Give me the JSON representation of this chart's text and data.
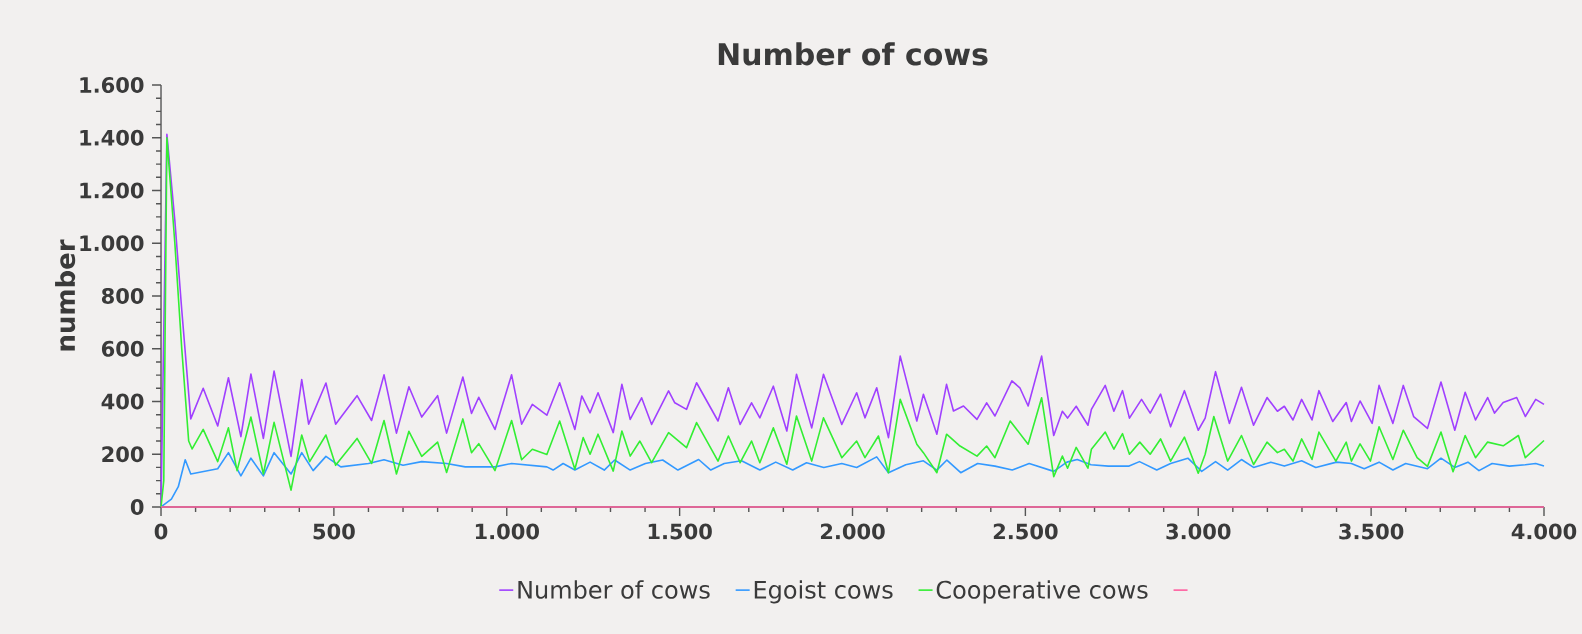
{
  "chart_data": {
    "type": "line",
    "title": "Number of cows",
    "ylabel": "number",
    "xlim": [
      0,
      4000
    ],
    "ylim": [
      0,
      1600
    ],
    "xticks": [
      0,
      500,
      {
        "value": 1000,
        "label": "1.000"
      },
      {
        "value": 1500,
        "label": "1.500"
      },
      {
        "value": 2000,
        "label": "2.000"
      },
      {
        "value": 2500,
        "label": "2.500"
      },
      {
        "value": 3000,
        "label": "3.000"
      },
      {
        "value": 3500,
        "label": "3.500"
      },
      {
        "value": 4000,
        "label": "4.000"
      }
    ],
    "yticks": [
      0,
      200,
      400,
      600,
      800,
      {
        "value": 1000,
        "label": "1.000"
      },
      {
        "value": 1200,
        "label": "1.200"
      },
      {
        "value": 1400,
        "label": "1.400"
      },
      {
        "value": 1600,
        "label": "1.600"
      }
    ],
    "legend": "bottom",
    "series": [
      {
        "name": "Number of cows",
        "color": "#a040ff",
        "x": [
          0,
          17,
          40,
          60,
          86,
          122,
          164,
          195,
          231,
          260,
          296,
          327,
          376,
          407,
          427,
          477,
          505,
          567,
          609,
          645,
          681,
          717,
          754,
          800,
          826,
          873,
          898,
          919,
          966,
          1014,
          1043,
          1074,
          1116,
          1153,
          1197,
          1217,
          1241,
          1264,
          1308,
          1333,
          1357,
          1390,
          1419,
          1468,
          1486,
          1520,
          1549,
          1611,
          1641,
          1675,
          1708,
          1732,
          1771,
          1810,
          1838,
          1882,
          1916,
          1969,
          2012,
          2036,
          2070,
          2104,
          2138,
          2186,
          2205,
          2244,
          2272,
          2292,
          2321,
          2360,
          2388,
          2412,
          2461,
          2484,
          2508,
          2547,
          2582,
          2607,
          2622,
          2647,
          2681,
          2691,
          2731,
          2756,
          2781,
          2801,
          2836,
          2861,
          2891,
          2920,
          2960,
          3000,
          3020,
          3050,
          3090,
          3125,
          3160,
          3199,
          3229,
          3249,
          3274,
          3299,
          3329,
          3349,
          3389,
          3428,
          3443,
          3468,
          3503,
          3523,
          3563,
          3593,
          3623,
          3663,
          3702,
          3742,
          3772,
          3802,
          3837,
          3857,
          3882,
          3921,
          3946,
          3976,
          4000
        ],
        "values": [
          0,
          1413,
          1086,
          747,
          334,
          450,
          307,
          490,
          267,
          504,
          260,
          515,
          192,
          483,
          314,
          470,
          314,
          422,
          328,
          501,
          280,
          456,
          341,
          422,
          280,
          493,
          355,
          416,
          294,
          501,
          314,
          389,
          348,
          471,
          294,
          421,
          357,
          433,
          282,
          465,
          332,
          414,
          313,
          440,
          395,
          370,
          471,
          326,
          452,
          313,
          395,
          338,
          458,
          288,
          503,
          300,
          503,
          313,
          433,
          338,
          452,
          263,
          572,
          326,
          427,
          276,
          465,
          364,
          383,
          332,
          395,
          345,
          478,
          452,
          383,
          572,
          271,
          363,
          337,
          382,
          310,
          370,
          461,
          363,
          441,
          337,
          408,
          356,
          428,
          304,
          441,
          291,
          337,
          513,
          317,
          454,
          310,
          415,
          363,
          382,
          330,
          408,
          330,
          441,
          324,
          396,
          324,
          402,
          317,
          461,
          317,
          461,
          343,
          298,
          474,
          291,
          435,
          330,
          415,
          356,
          396,
          415,
          343,
          408,
          389
        ]
      },
      {
        "name": "Egoist cows",
        "color": "#3399ff",
        "x": [
          0,
          30,
          50,
          70,
          86,
          164,
          195,
          231,
          260,
          296,
          327,
          376,
          407,
          440,
          477,
          520,
          600,
          645,
          700,
          754,
          826,
          880,
          966,
          1014,
          1116,
          1134,
          1163,
          1197,
          1241,
          1282,
          1312,
          1357,
          1401,
          1451,
          1495,
          1555,
          1590,
          1629,
          1679,
          1732,
          1778,
          1827,
          1867,
          1917,
          1969,
          2012,
          2070,
          2104,
          2154,
          2205,
          2244,
          2273,
          2313,
          2362,
          2412,
          2462,
          2511,
          2582,
          2620,
          2650,
          2690,
          2740,
          2800,
          2830,
          2880,
          2920,
          2970,
          3010,
          3050,
          3085,
          3125,
          3160,
          3210,
          3249,
          3299,
          3340,
          3400,
          3443,
          3480,
          3523,
          3563,
          3600,
          3663,
          3702,
          3742,
          3780,
          3812,
          3850,
          3900,
          3946,
          3976,
          4000
        ],
        "values": [
          0,
          30,
          77,
          179,
          125,
          145,
          206,
          118,
          185,
          118,
          206,
          125,
          206,
          138,
          192,
          152,
          165,
          179,
          158,
          172,
          165,
          152,
          152,
          165,
          152,
          140,
          165,
          140,
          170,
          140,
          178,
          140,
          165,
          178,
          140,
          180,
          140,
          165,
          175,
          140,
          170,
          140,
          168,
          150,
          165,
          150,
          190,
          130,
          160,
          175,
          140,
          178,
          130,
          165,
          155,
          140,
          165,
          135,
          170,
          180,
          160,
          155,
          155,
          172,
          140,
          165,
          185,
          135,
          172,
          140,
          180,
          150,
          170,
          155,
          175,
          150,
          170,
          165,
          145,
          170,
          140,
          165,
          145,
          185,
          150,
          170,
          138,
          165,
          155,
          160,
          165,
          155
        ]
      },
      {
        "name": "Cooperative cows",
        "color": "#33ee33",
        "x": [
          0,
          8,
          17,
          40,
          60,
          80,
          90,
          122,
          164,
          195,
          220,
          260,
          296,
          327,
          376,
          407,
          430,
          477,
          505,
          567,
          609,
          645,
          681,
          717,
          754,
          800,
          826,
          873,
          898,
          919,
          966,
          1014,
          1043,
          1074,
          1116,
          1153,
          1197,
          1221,
          1241,
          1264,
          1308,
          1333,
          1357,
          1385,
          1419,
          1468,
          1520,
          1549,
          1611,
          1641,
          1675,
          1708,
          1732,
          1771,
          1810,
          1838,
          1882,
          1916,
          1969,
          2012,
          2036,
          2075,
          2104,
          2138,
          2186,
          2205,
          2244,
          2272,
          2311,
          2360,
          2388,
          2412,
          2456,
          2508,
          2547,
          2582,
          2607,
          2622,
          2647,
          2681,
          2691,
          2731,
          2756,
          2781,
          2801,
          2831,
          2861,
          2891,
          2920,
          2960,
          3000,
          3020,
          3045,
          3085,
          3125,
          3160,
          3199,
          3229,
          3249,
          3274,
          3299,
          3329,
          3349,
          3398,
          3428,
          3443,
          3468,
          3498,
          3523,
          3563,
          3593,
          3633,
          3663,
          3702,
          3737,
          3772,
          3802,
          3837,
          3882,
          3926,
          3946,
          4000
        ],
        "values": [
          0,
          100,
          1400,
          1000,
          600,
          250,
          220,
          294,
          172,
          300,
          138,
          341,
          125,
          321,
          64,
          273,
          172,
          273,
          158,
          260,
          165,
          328,
          125,
          287,
          192,
          246,
          131,
          334,
          206,
          240,
          138,
          328,
          179,
          219,
          199,
          326,
          143,
          263,
          200,
          276,
          136,
          288,
          193,
          250,
          168,
          282,
          225,
          320,
          174,
          269,
          168,
          250,
          168,
          300,
          162,
          345,
          174,
          338,
          187,
          250,
          187,
          269,
          130,
          408,
          238,
          206,
          130,
          276,
          231,
          193,
          231,
          187,
          326,
          238,
          414,
          115,
          193,
          147,
          226,
          147,
          219,
          284,
          219,
          278,
          200,
          246,
          200,
          258,
          174,
          265,
          128,
          200,
          343,
          174,
          271,
          161,
          246,
          206,
          219,
          174,
          258,
          180,
          284,
          174,
          246,
          174,
          239,
          174,
          304,
          180,
          291,
          187,
          154,
          284,
          134,
          271,
          187,
          246,
          232,
          271,
          187,
          252
        ]
      },
      {
        "color": "#ff5fa0",
        "x": [
          0,
          4000
        ],
        "values": [
          0,
          0
        ]
      }
    ]
  }
}
